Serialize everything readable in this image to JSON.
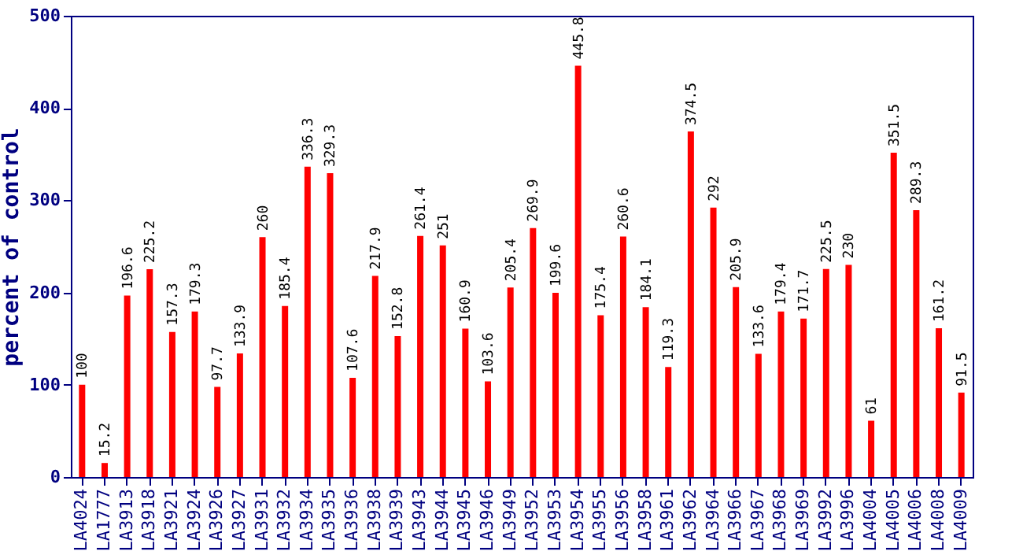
{
  "chart_data": {
    "type": "bar",
    "ylabel": "percent of control",
    "categories": [
      "LA4024",
      "LA1777",
      "LA3913",
      "LA3918",
      "LA3921",
      "LA3924",
      "LA3926",
      "LA3927",
      "LA3931",
      "LA3932",
      "LA3934",
      "LA3935",
      "LA3936",
      "LA3938",
      "LA3939",
      "LA3943",
      "LA3944",
      "LA3945",
      "LA3946",
      "LA3949",
      "LA3952",
      "LA3953",
      "LA3954",
      "LA3955",
      "LA3956",
      "LA3958",
      "LA3961",
      "LA3962",
      "LA3964",
      "LA3966",
      "LA3967",
      "LA3968",
      "LA3969",
      "LA3992",
      "LA3996",
      "LA4004",
      "LA4005",
      "LA4006",
      "LA4008",
      "LA4009"
    ],
    "values": [
      100,
      15.2,
      196.6,
      225.2,
      157.3,
      179.3,
      97.7,
      133.9,
      260,
      185.4,
      336.3,
      329.3,
      107.6,
      217.9,
      152.8,
      261.4,
      251,
      160.9,
      103.6,
      205.4,
      269.9,
      199.6,
      445.8,
      175.4,
      260.6,
      184.1,
      119.3,
      374.5,
      292,
      205.9,
      133.6,
      179.4,
      171.7,
      225.5,
      230,
      61,
      351.5,
      289.3,
      161.2,
      91.5
    ],
    "color": "#ff0000",
    "ylim": [
      0,
      500
    ],
    "yticks": [
      0,
      100,
      200,
      300,
      400,
      500
    ],
    "data_labels": true,
    "grid": false
  }
}
